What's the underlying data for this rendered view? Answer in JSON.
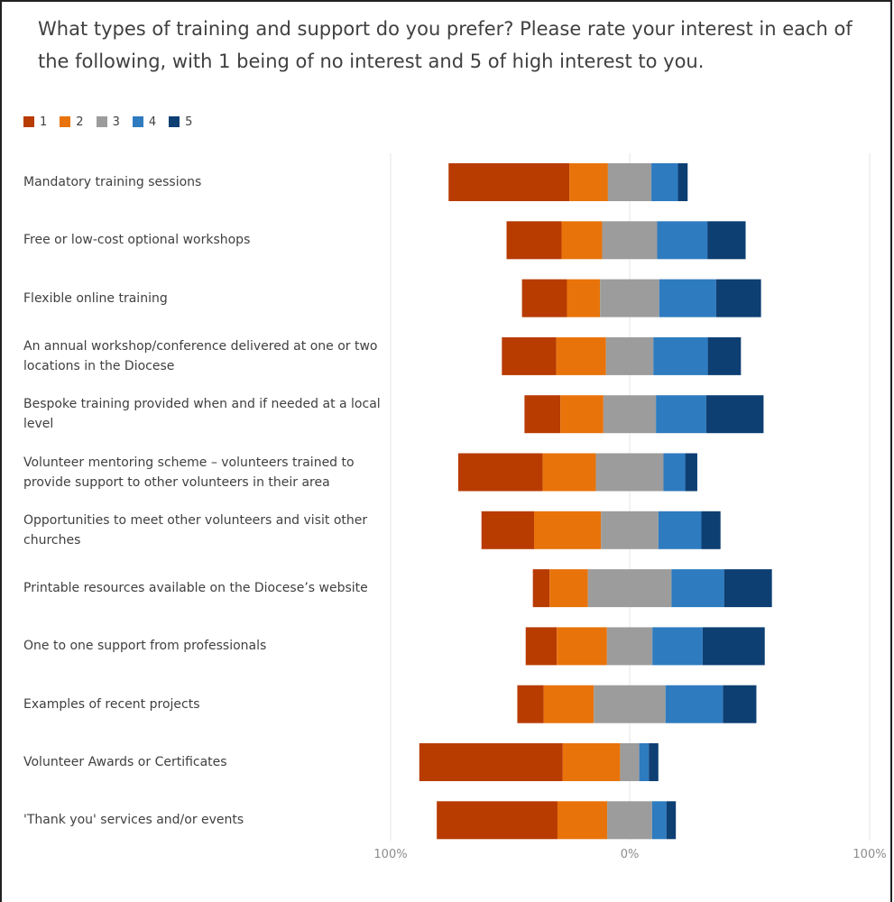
{
  "title": "What types of training and support do you prefer? Please rate your interest in each of the following, with 1 being of no interest and 5 of high interest to you.",
  "colors": {
    "s1": "#b83b00",
    "s2": "#e8730a",
    "s3": "#9c9c9c",
    "s4": "#2e7bc0",
    "s5": "#0d3f73",
    "grid": "#e6e6e6",
    "tick": "#8c8c8c"
  },
  "chart_data": {
    "type": "bar",
    "orientation": "horizontal",
    "stacked": "diverging",
    "xlim": [
      -100,
      100
    ],
    "x_ticks": [
      "100%",
      "0%",
      "100%"
    ],
    "legend": [
      "1",
      "2",
      "3",
      "4",
      "5"
    ],
    "legend_position": "top-left",
    "categories": [
      "Mandatory training sessions",
      "Free or low-cost optional workshops",
      "Flexible online training",
      "An annual workshop/conference delivered at one or two locations in the Diocese",
      "Bespoke training provided when and if needed at a local level",
      "Volunteer mentoring scheme – volunteers trained to provide support to other volunteers in their area",
      "Opportunities to meet other volunteers and visit other churches",
      "Printable resources available on the Diocese’s website",
      "One to one support from professionals",
      "Examples of recent projects",
      "Volunteer Awards or Certificates",
      "'Thank you' services and/or events"
    ],
    "series": [
      {
        "name": "1",
        "values": [
          50,
          23,
          19,
          23,
          15,
          35,
          22,
          7,
          13,
          11,
          60,
          51
        ]
      },
      {
        "name": "2",
        "values": [
          16,
          17,
          14,
          21,
          18,
          22,
          28,
          16,
          21,
          21,
          24,
          21
        ]
      },
      {
        "name": "3",
        "values": [
          18,
          23,
          25,
          20,
          22,
          28,
          24,
          35,
          19,
          30,
          8,
          19
        ]
      },
      {
        "name": "4",
        "values": [
          11,
          21,
          24,
          23,
          21,
          9,
          18,
          22,
          21,
          24,
          4,
          6
        ]
      },
      {
        "name": "5",
        "values": [
          4,
          16,
          19,
          14,
          24,
          5,
          8,
          20,
          26,
          14,
          4,
          4
        ]
      }
    ]
  }
}
